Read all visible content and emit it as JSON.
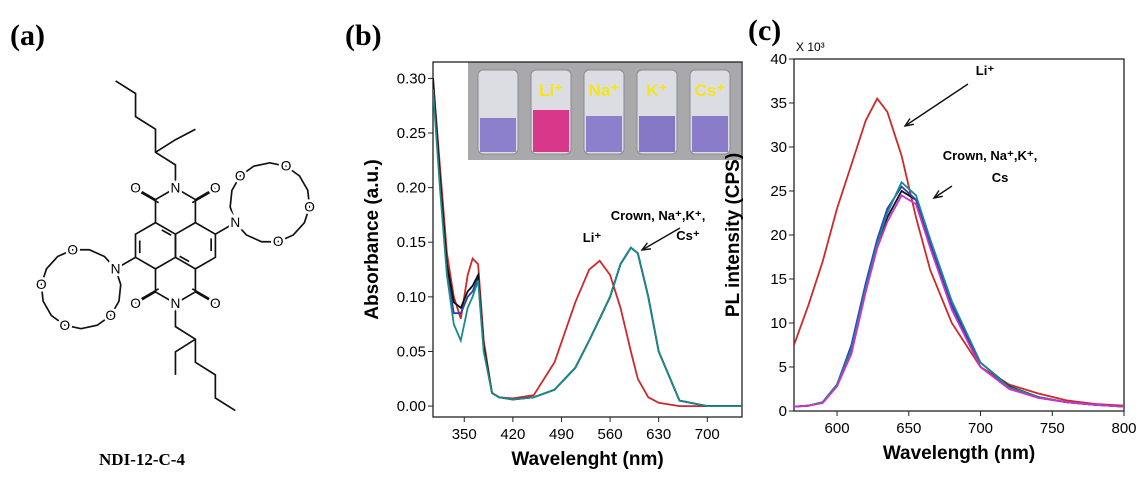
{
  "panels": [
    "(a)",
    "(b)",
    "(c)"
  ],
  "structure": {
    "name": "NDI-12-C-4",
    "atoms": [
      "N",
      "O",
      "O",
      "N",
      "O",
      "O",
      "N",
      "O",
      "O",
      "O",
      "O",
      "N",
      "O",
      "O",
      "O",
      "O"
    ]
  },
  "chart_data": [
    {
      "type": "line",
      "xlabel": "Wavelenght (nm)",
      "ylabel": "Absorbance (a.u.)",
      "x": [
        305,
        315,
        325,
        335,
        345,
        355,
        362,
        370,
        378,
        390,
        400,
        420,
        450,
        480,
        510,
        530,
        545,
        560,
        575,
        590,
        600,
        615,
        630,
        660,
        700,
        750
      ],
      "xlim": [
        305,
        750
      ],
      "xticks": [
        350,
        420,
        490,
        560,
        630,
        700
      ],
      "ylim": [
        -0.01,
        0.315
      ],
      "yticks": [
        {
          "value": 0,
          "label": "0.00"
        },
        {
          "value": 0.05,
          "label": "0.05"
        },
        {
          "value": 0.1,
          "label": "0.10"
        },
        {
          "value": 0.15,
          "label": "0.15"
        },
        {
          "value": 0.2,
          "label": "0.20"
        },
        {
          "value": 0.25,
          "label": "0.25"
        },
        {
          "value": 0.3,
          "label": "0.30"
        }
      ],
      "series": [
        {
          "color": "#cc2a2a",
          "values": [
            0.3,
            0.22,
            0.14,
            0.1,
            0.08,
            0.12,
            0.135,
            0.13,
            0.06,
            0.012,
            0.008,
            0.007,
            0.01,
            0.04,
            0.095,
            0.125,
            0.133,
            0.12,
            0.09,
            0.05,
            0.025,
            0.008,
            0.003,
            0.0,
            0.0,
            0.0
          ]
        },
        {
          "color": "#2a3fbf",
          "values": [
            0.295,
            0.205,
            0.125,
            0.085,
            0.085,
            0.1,
            0.105,
            0.118,
            0.052,
            0.012,
            0.008,
            0.006,
            0.008,
            0.015,
            0.035,
            0.06,
            0.08,
            0.1,
            0.13,
            0.145,
            0.14,
            0.1,
            0.05,
            0.005,
            0.0,
            0.0
          ]
        },
        {
          "color": "#111111",
          "values": [
            0.3,
            0.21,
            0.13,
            0.095,
            0.09,
            0.105,
            0.11,
            0.12,
            0.055,
            0.012,
            0.008,
            0.006,
            0.008,
            0.015,
            0.035,
            0.06,
            0.08,
            0.1,
            0.13,
            0.145,
            0.14,
            0.1,
            0.05,
            0.005,
            0.0,
            0.0
          ]
        },
        {
          "color": "#1a8a8a",
          "values": [
            0.29,
            0.2,
            0.12,
            0.075,
            0.06,
            0.09,
            0.1,
            0.115,
            0.05,
            0.012,
            0.008,
            0.006,
            0.008,
            0.015,
            0.035,
            0.06,
            0.08,
            0.1,
            0.13,
            0.145,
            0.14,
            0.1,
            0.05,
            0.005,
            0.0,
            0.0
          ]
        }
      ],
      "annotations": [
        "Li⁺",
        "Crown, Na⁺,K⁺,",
        "Cs⁺"
      ],
      "inset_labels": [
        "Li⁺",
        "Na⁺",
        "K⁺",
        "Cs⁺"
      ]
    },
    {
      "type": "line",
      "xlabel": "Wavelength (nm)",
      "ylabel": "PL intensity (CPS)",
      "multiplier": "X 10³",
      "x": [
        570,
        580,
        590,
        600,
        610,
        620,
        628,
        635,
        645,
        655,
        665,
        680,
        700,
        720,
        740,
        760,
        780,
        800
      ],
      "xlim": [
        570,
        800
      ],
      "xticks": [
        600,
        650,
        700,
        750,
        800
      ],
      "ylim": [
        0,
        40
      ],
      "yticks": [
        0,
        5,
        10,
        15,
        20,
        25,
        30,
        35,
        40
      ],
      "series": [
        {
          "color": "#cc2a2a",
          "values": [
            7.5,
            12,
            17,
            23,
            28,
            33,
            35.5,
            34,
            29,
            22,
            16,
            10,
            5,
            3,
            2,
            1.2,
            0.8,
            0.6
          ]
        },
        {
          "color": "#111111",
          "values": [
            0.5,
            0.6,
            1,
            3,
            7,
            14,
            19,
            22,
            25,
            24,
            19,
            12,
            5.5,
            2.8,
            1.6,
            1,
            0.7,
            0.5
          ]
        },
        {
          "color": "#2a3fbf",
          "values": [
            0.5,
            0.6,
            1,
            3,
            7.5,
            14.5,
            19.5,
            23,
            25.5,
            24,
            19,
            12,
            5,
            2.6,
            1.5,
            1,
            0.7,
            0.5
          ]
        },
        {
          "color": "#1a8a8a",
          "values": [
            0.5,
            0.6,
            1,
            3,
            7,
            14,
            19,
            22.5,
            26,
            24.5,
            19.5,
            12.5,
            5.5,
            2.7,
            1.6,
            1,
            0.7,
            0.5
          ]
        },
        {
          "color": "#cc33cc",
          "values": [
            0.5,
            0.6,
            0.9,
            2.8,
            6.5,
            13.5,
            18.5,
            21.5,
            24.5,
            23.5,
            18.5,
            11.5,
            5,
            2.5,
            1.5,
            1,
            0.7,
            0.5
          ]
        }
      ],
      "annotations": [
        "Li⁺",
        "Crown, Na⁺,K⁺,",
        "Cs"
      ]
    }
  ]
}
